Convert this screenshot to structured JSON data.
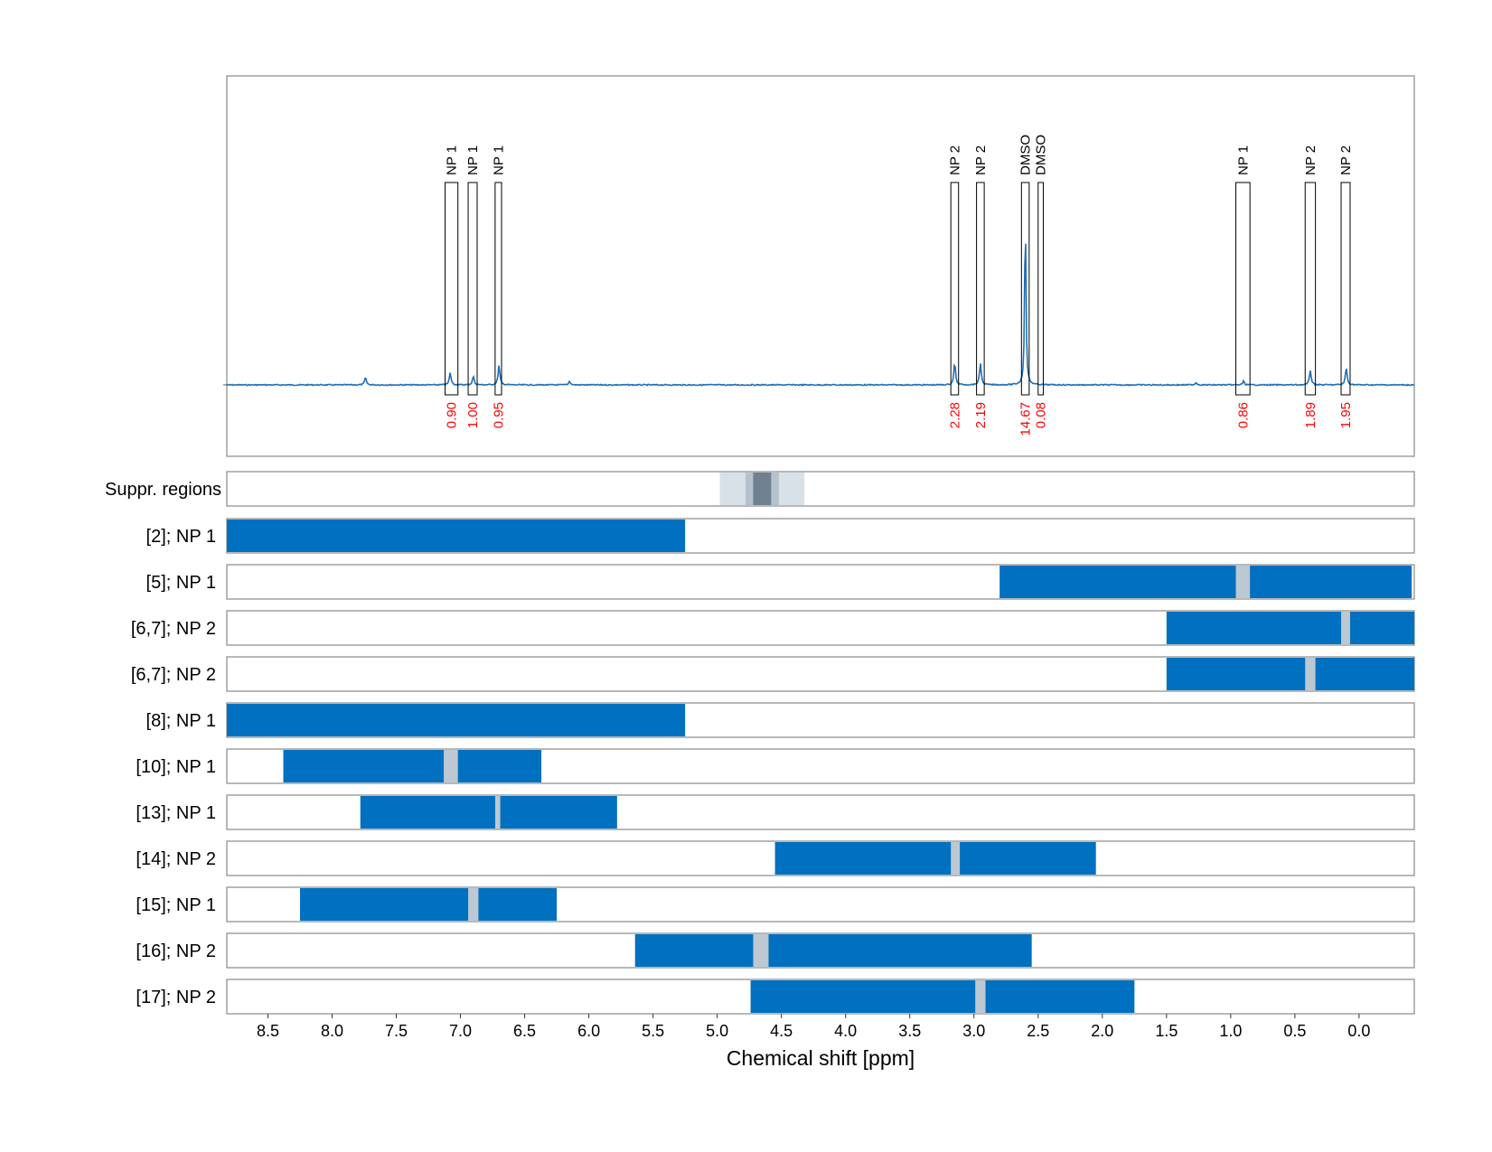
{
  "chart_data": {
    "type": "nmr-spectrum-with-range-bars",
    "xlabel": "Chemical shift [ppm]",
    "x_reversed": true,
    "xlim": [
      8.82,
      -0.43
    ],
    "x_ticks": [
      8.5,
      8.0,
      7.5,
      7.0,
      6.5,
      6.0,
      5.5,
      5.0,
      4.5,
      4.0,
      3.5,
      3.0,
      2.5,
      2.0,
      1.5,
      1.0,
      0.5,
      0.0
    ],
    "x_tick_labels": [
      "8.5",
      "8.0",
      "7.5",
      "7.0",
      "6.5",
      "6.0",
      "5.5",
      "5.0",
      "4.5",
      "4.0",
      "3.5",
      "3.0",
      "2.5",
      "2.0",
      "1.5",
      "1.0",
      "0.5",
      "0.0"
    ],
    "grid": "dashed vertical at ticks",
    "colors": {
      "spectrum": "#1f6fb5",
      "bar": "#0070c0",
      "peak_marker": "#bcc8d2",
      "integral_text": "#ff0000",
      "suppr_light": "#d9e1e8",
      "suppr_mid": "#b5c2cd",
      "suppr_dark": "#6f8190",
      "frame": "#888888",
      "grid": "#aaaaaa"
    },
    "spectrum": {
      "baseline": 0,
      "peaks": [
        {
          "x": 7.74,
          "h": 0.03
        },
        {
          "x": 7.08,
          "h": 0.05
        },
        {
          "x": 6.9,
          "h": 0.035
        },
        {
          "x": 6.7,
          "h": 0.08
        },
        {
          "x": 6.15,
          "h": 0.015
        },
        {
          "x": 3.15,
          "h": 0.09
        },
        {
          "x": 2.95,
          "h": 0.09
        },
        {
          "x": 2.6,
          "h": 0.72
        },
        {
          "x": 1.27,
          "h": 0.01
        },
        {
          "x": 0.9,
          "h": 0.015
        },
        {
          "x": 0.38,
          "h": 0.06
        },
        {
          "x": 0.1,
          "h": 0.07
        }
      ]
    },
    "annotations": [
      {
        "label": "NP 1",
        "value": "0.90",
        "x_from": 7.12,
        "x_to": 7.02
      },
      {
        "label": "NP 1",
        "value": "1.00",
        "x_from": 6.94,
        "x_to": 6.87
      },
      {
        "label": "NP 1",
        "value": "0.95",
        "x_from": 6.73,
        "x_to": 6.68
      },
      {
        "label": "NP 2",
        "value": "2.28",
        "x_from": 3.18,
        "x_to": 3.12
      },
      {
        "label": "NP 2",
        "value": "2.19",
        "x_from": 2.98,
        "x_to": 2.92
      },
      {
        "label": "DMSO",
        "value": "14.67",
        "x_from": 2.63,
        "x_to": 2.57
      },
      {
        "label": "DMSO",
        "value": "0.08",
        "x_from": 2.5,
        "x_to": 2.46
      },
      {
        "label": "NP 1",
        "value": "0.86",
        "x_from": 0.96,
        "x_to": 0.85
      },
      {
        "label": "NP 2",
        "value": "1.89",
        "x_from": 0.42,
        "x_to": 0.34
      },
      {
        "label": "NP 2",
        "value": "1.95",
        "x_from": 0.14,
        "x_to": 0.07
      }
    ],
    "suppression": {
      "label": "Suppr. regions",
      "layers": [
        {
          "x_from": 4.98,
          "x_to": 4.32,
          "shade": "light"
        },
        {
          "x_from": 4.78,
          "x_to": 4.52,
          "shade": "mid"
        },
        {
          "x_from": 4.72,
          "x_to": 4.58,
          "shade": "dark"
        }
      ]
    },
    "rows": [
      {
        "label": "[2]; NP 1",
        "x_from": 8.82,
        "x_to": 5.25,
        "marker": null
      },
      {
        "label": "[5]; NP 1",
        "x_from": 2.8,
        "x_to": -0.41,
        "marker": [
          0.96,
          0.85
        ]
      },
      {
        "label": "[6,7]; NP 2",
        "x_from": 1.5,
        "x_to": -0.43,
        "marker": [
          0.14,
          0.07
        ]
      },
      {
        "label": "[6,7]; NP 2",
        "x_from": 1.5,
        "x_to": -0.43,
        "marker": [
          0.42,
          0.34
        ]
      },
      {
        "label": "[8]; NP 1",
        "x_from": 8.82,
        "x_to": 5.25,
        "marker": null
      },
      {
        "label": "[10]; NP 1",
        "x_from": 8.38,
        "x_to": 6.37,
        "marker": [
          7.13,
          7.02
        ]
      },
      {
        "label": "[13]; NP 1",
        "x_from": 7.78,
        "x_to": 5.78,
        "marker": [
          6.73,
          6.69
        ]
      },
      {
        "label": "[14]; NP 2",
        "x_from": 4.55,
        "x_to": 2.05,
        "marker": [
          3.18,
          3.11
        ]
      },
      {
        "label": "[15]; NP 1",
        "x_from": 8.25,
        "x_to": 6.25,
        "marker": [
          6.94,
          6.86
        ]
      },
      {
        "label": "[16]; NP 2",
        "x_from": 5.64,
        "x_to": 2.55,
        "marker": [
          4.72,
          4.6
        ]
      },
      {
        "label": "[17]; NP 2",
        "x_from": 4.74,
        "x_to": 1.75,
        "marker": [
          2.99,
          2.91
        ]
      }
    ]
  }
}
